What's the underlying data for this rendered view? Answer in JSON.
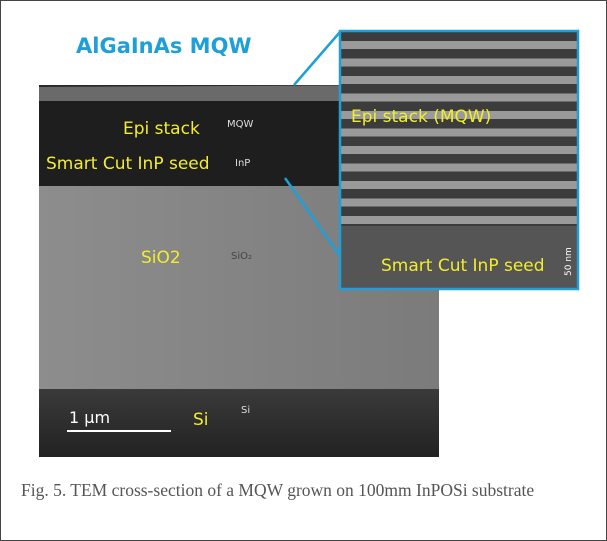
{
  "title_label": "AlGaInAs MQW",
  "tem_image": {
    "epi_stack": "Epi stack",
    "mqw": "MQW",
    "smart_cut": "Smart Cut InP seed",
    "inp": "InP",
    "sio2": "SiO2",
    "sio2_small": "SiO₂",
    "scale": "1 µm",
    "si": "Si",
    "si_small": "Si"
  },
  "inset": {
    "epi_stack": "Epi stack (MQW)",
    "smart_cut": "Smart Cut InP seed",
    "scale": "50 nm"
  },
  "caption": "Fig. 5. TEM cross-section of a MQW grown on 100mm InPOSi substrate"
}
